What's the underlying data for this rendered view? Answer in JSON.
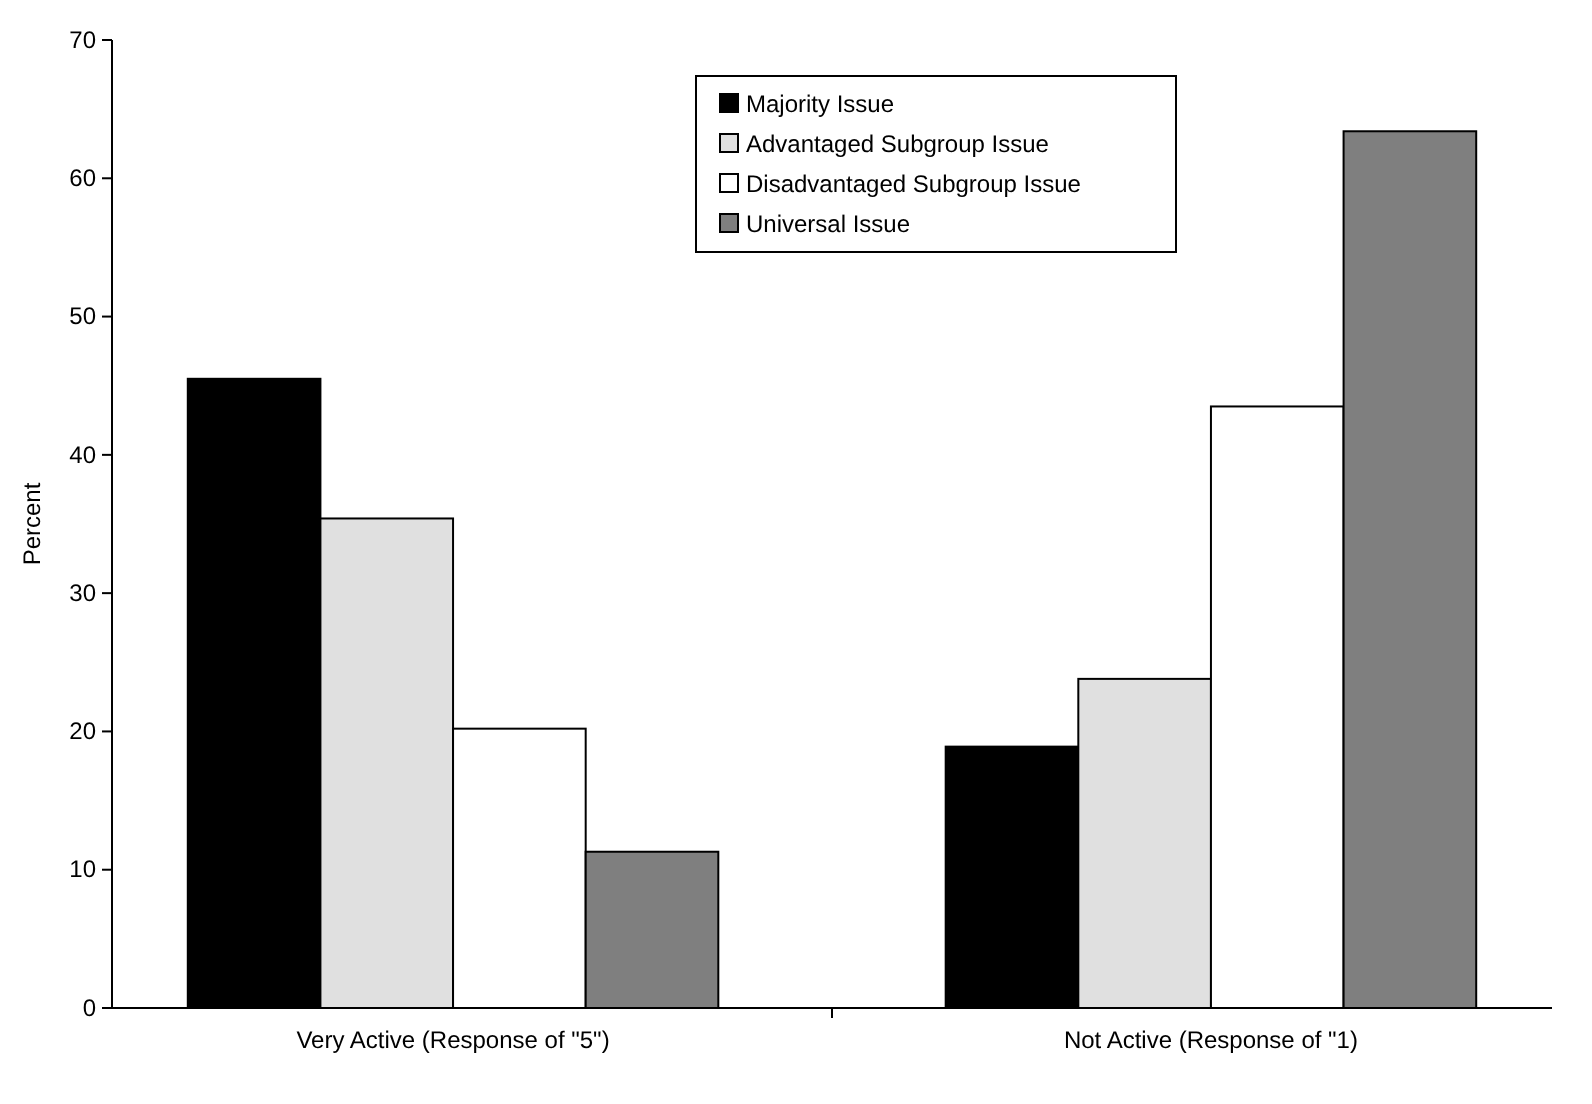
{
  "chart_data": {
    "type": "bar",
    "ylabel": "Percent",
    "categories": [
      "Very Active (Response of \"5\")",
      "Not Active (Response of \"1)"
    ],
    "series": [
      {
        "name": "Majority Issue",
        "color": "#000000",
        "values": [
          45.5,
          18.9
        ]
      },
      {
        "name": "Advantaged Subgroup Issue",
        "color": "#e0e0e0",
        "values": [
          35.4,
          23.8
        ]
      },
      {
        "name": "Disadvantaged Subgroup Issue",
        "color": "#ffffff",
        "values": [
          20.2,
          43.5
        ]
      },
      {
        "name": "Universal Issue",
        "color": "#7f7f7f",
        "values": [
          11.3,
          63.4
        ]
      }
    ],
    "ylim": [
      0,
      70
    ],
    "yticks": [
      0,
      10,
      20,
      30,
      40,
      50,
      60,
      70
    ],
    "grid": false,
    "legend": "top"
  }
}
